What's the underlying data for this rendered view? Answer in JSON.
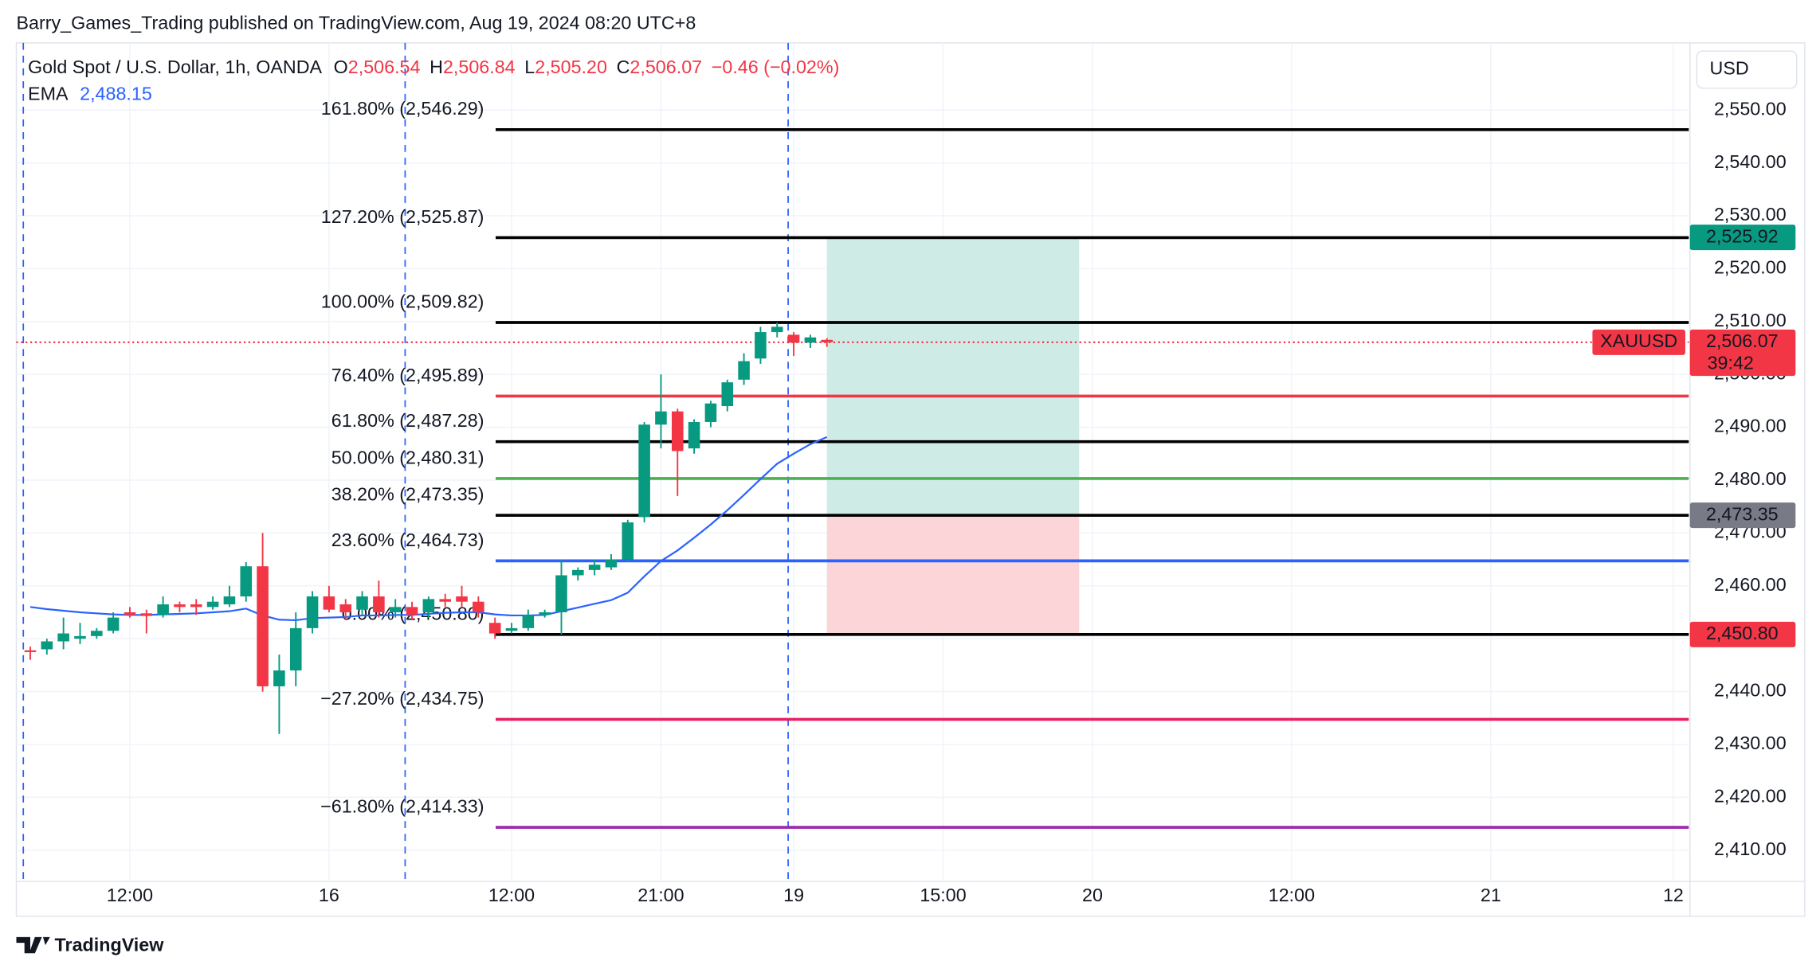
{
  "header": {
    "published": "Barry_Games_Trading published on TradingView.com, Aug 19, 2024 08:20 UTC+8"
  },
  "chart_data": {
    "type": "candlestick",
    "title": "Gold Spot / U.S. Dollar, 1h, OANDA",
    "ohlc_legend": [
      {
        "key": "O",
        "text": "2,506.54"
      },
      {
        "key": "H",
        "text": "2,506.84"
      },
      {
        "key": "L",
        "text": "2,505.20"
      },
      {
        "key": "C",
        "text": "2,506.07"
      }
    ],
    "change": "−0.46 (−0.02%)",
    "currency": "USD",
    "up_color": "#089981",
    "down_color": "#f23645",
    "open": [
      2447.8,
      2448,
      2449.5,
      2450,
      2450.5,
      2451.5,
      2455,
      2454.8,
      2454.5,
      2456.5,
      2456.5,
      2456,
      2456.5,
      2458,
      2463.7,
      2441,
      2444,
      2452,
      2458,
      2456.5,
      2455.5,
      2458,
      2455,
      2456,
      2455,
      2457.5,
      2458,
      2457,
      2453,
      2451.5,
      2452,
      2454.5,
      2455,
      2462,
      2463,
      2463.5,
      2465,
      2473,
      2490.5,
      2493,
      2486,
      2491,
      2494,
      2499,
      2503,
      2508,
      2507.5,
      2506,
      2506.54
    ],
    "high": [
      2448.5,
      2450,
      2454,
      2453,
      2452,
      2455,
      2456,
      2455.5,
      2458,
      2457,
      2457.5,
      2458,
      2460,
      2464.5,
      2470,
      2447,
      2455,
      2459,
      2460,
      2457.5,
      2459,
      2461,
      2457.5,
      2457,
      2458,
      2458.5,
      2460,
      2458,
      2454,
      2453,
      2455.5,
      2455.5,
      2465,
      2463.5,
      2465,
      2466,
      2472.5,
      2491,
      2500,
      2493.5,
      2491.5,
      2495,
      2499,
      2504,
      2509,
      2509.8,
      2508,
      2507.5,
      2506.84
    ],
    "low": [
      2446,
      2447,
      2448,
      2449,
      2450,
      2451,
      2454,
      2451,
      2454,
      2455,
      2454.5,
      2455.5,
      2456,
      2457,
      2440,
      2432,
      2441,
      2451,
      2455,
      2453.5,
      2454.5,
      2454,
      2454,
      2453.5,
      2454,
      2456,
      2456,
      2454,
      2450,
      2451,
      2451.5,
      2454,
      2450.8,
      2461,
      2462,
      2463,
      2464.5,
      2472,
      2486,
      2477,
      2485,
      2490,
      2493,
      2498,
      2502,
      2507,
      2503.5,
      2505,
      2505.2
    ],
    "close": [
      2447.5,
      2449.5,
      2451,
      2450.5,
      2451.5,
      2454,
      2454.5,
      2454.3,
      2456.5,
      2456,
      2456,
      2457,
      2458,
      2463.7,
      2441,
      2444,
      2452,
      2458,
      2455.5,
      2455,
      2458,
      2455,
      2456,
      2454.5,
      2457.5,
      2457,
      2457,
      2455,
      2451,
      2452,
      2454.5,
      2455,
      2462,
      2463,
      2464,
      2465,
      2472,
      2490.5,
      2493,
      2485.5,
      2491,
      2494.5,
      2498.5,
      2502.5,
      2508,
      2509,
      2506,
      2507,
      2506.07
    ],
    "ema": {
      "name": "EMA",
      "value_label": "2,488.15",
      "color": "#2962ff",
      "values": [
        2456,
        2455.6,
        2455.3,
        2455,
        2454.8,
        2454.6,
        2454.5,
        2454.5,
        2454.6,
        2454.7,
        2454.8,
        2455,
        2455.2,
        2455.7,
        2454.4,
        2453.6,
        2453.5,
        2453.9,
        2454,
        2454.1,
        2454.4,
        2454.4,
        2454.5,
        2454.5,
        2454.7,
        2454.9,
        2455,
        2455,
        2454.6,
        2454.4,
        2454.4,
        2454.5,
        2455.2,
        2455.9,
        2456.6,
        2457.3,
        2458.7,
        2461.8,
        2464.7,
        2466.7,
        2469.1,
        2471.6,
        2474.3,
        2477.2,
        2480.2,
        2483.1,
        2485,
        2486.8,
        2488.15
      ]
    },
    "fib_levels": [
      {
        "label": "161.80% (2,546.29)",
        "value": 2546.29,
        "color": "#000000"
      },
      {
        "label": "127.20% (2,525.87)",
        "value": 2525.87,
        "color": "#000000"
      },
      {
        "label": "100.00% (2,509.82)",
        "value": 2509.82,
        "color": "#000000"
      },
      {
        "label": "76.40% (2,495.89)",
        "value": 2495.89,
        "color": "#f23645"
      },
      {
        "label": "61.80% (2,487.28)",
        "value": 2487.28,
        "color": "#000000"
      },
      {
        "label": "50.00% (2,480.31)",
        "value": 2480.31,
        "color": "#4caf50"
      },
      {
        "label": "38.20% (2,473.35)",
        "value": 2473.35,
        "color": "#000000"
      },
      {
        "label": "23.60% (2,464.73)",
        "value": 2464.73,
        "color": "#2962ff"
      },
      {
        "label": "0.00% (2,450.80)",
        "value": 2450.8,
        "color": "#000000"
      },
      {
        "label": "−27.20% (2,434.75)",
        "value": 2434.75,
        "color": "#e91e63"
      },
      {
        "label": "−61.80% (2,414.33)",
        "value": 2414.33,
        "color": "#9c27b0"
      }
    ],
    "position": {
      "target": {
        "value": 2525.92,
        "label": "2,525.92",
        "color": "#089981"
      },
      "entry": {
        "value": 2473.35,
        "label": "2,473.35",
        "color": "#787b86"
      },
      "stop": {
        "value": 2450.8,
        "label": "2,450.80",
        "color": "#f23645"
      },
      "profit_fill": "#cfebe6",
      "loss_fill": "#fbd5d8"
    },
    "last_price": {
      "symbol": "XAUUSD",
      "value": 2506.07,
      "label": "2,506.07",
      "countdown": "39:42",
      "color": "#f23645"
    },
    "xlim": [
      -0.84,
      99.93
    ],
    "xticks": [
      {
        "value": 6,
        "label": "12:00"
      },
      {
        "value": 18,
        "label": "16"
      },
      {
        "value": 29,
        "label": "12:00"
      },
      {
        "value": 38,
        "label": "21:00"
      },
      {
        "value": 46,
        "label": "19"
      },
      {
        "value": 55,
        "label": "15:00"
      },
      {
        "value": 64,
        "label": "20"
      },
      {
        "value": 76,
        "label": "12:00"
      },
      {
        "value": 88,
        "label": "21"
      },
      {
        "value": 99,
        "label": "12"
      }
    ],
    "ylim": [
      2404.1,
      2562.7
    ],
    "yticks": [
      {
        "value": 2410,
        "label": "2,410.00"
      },
      {
        "value": 2420,
        "label": "2,420.00"
      },
      {
        "value": 2430,
        "label": "2,430.00"
      },
      {
        "value": 2440,
        "label": "2,440.00"
      },
      {
        "value": 2450,
        "label": "2,450.00"
      },
      {
        "value": 2460,
        "label": "2,460.00"
      },
      {
        "value": 2470,
        "label": "2,470.00"
      },
      {
        "value": 2480,
        "label": "2,480.00"
      },
      {
        "value": 2490,
        "label": "2,490.00"
      },
      {
        "value": 2500,
        "label": "2,500.00"
      },
      {
        "value": 2510,
        "label": "2,510.00"
      },
      {
        "value": 2520,
        "label": "2,520.00"
      },
      {
        "value": 2530,
        "label": "2,530.00"
      },
      {
        "value": 2540,
        "label": "2,540.00"
      },
      {
        "value": 2550,
        "label": "2,550.00"
      }
    ],
    "grid": true
  },
  "footer": {
    "brand": "TradingView"
  }
}
